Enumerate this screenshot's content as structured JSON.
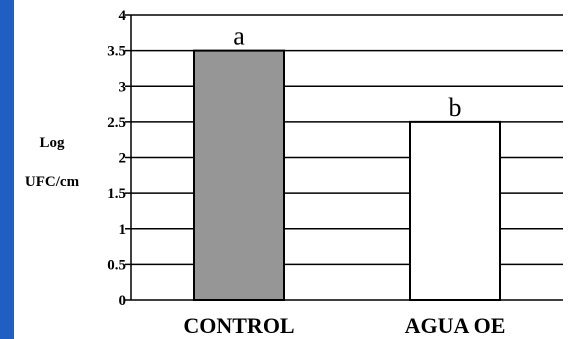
{
  "chart_data": {
    "type": "bar",
    "categories": [
      "CONTROL",
      "AGUA OE"
    ],
    "values": [
      3.5,
      2.5
    ],
    "data_labels": [
      "a",
      "b"
    ],
    "bar_colors": [
      "#969696",
      "#ffffff"
    ],
    "ylabel_lines": [
      "Log",
      "UFC/cm"
    ],
    "yticks": [
      "0",
      "0.5",
      "1",
      "1.5",
      "2",
      "2.5",
      "3",
      "3.5",
      "4"
    ],
    "ylim": [
      0,
      4
    ],
    "grid": true
  },
  "colors": {
    "edge_bar": "#1f5fc4"
  }
}
